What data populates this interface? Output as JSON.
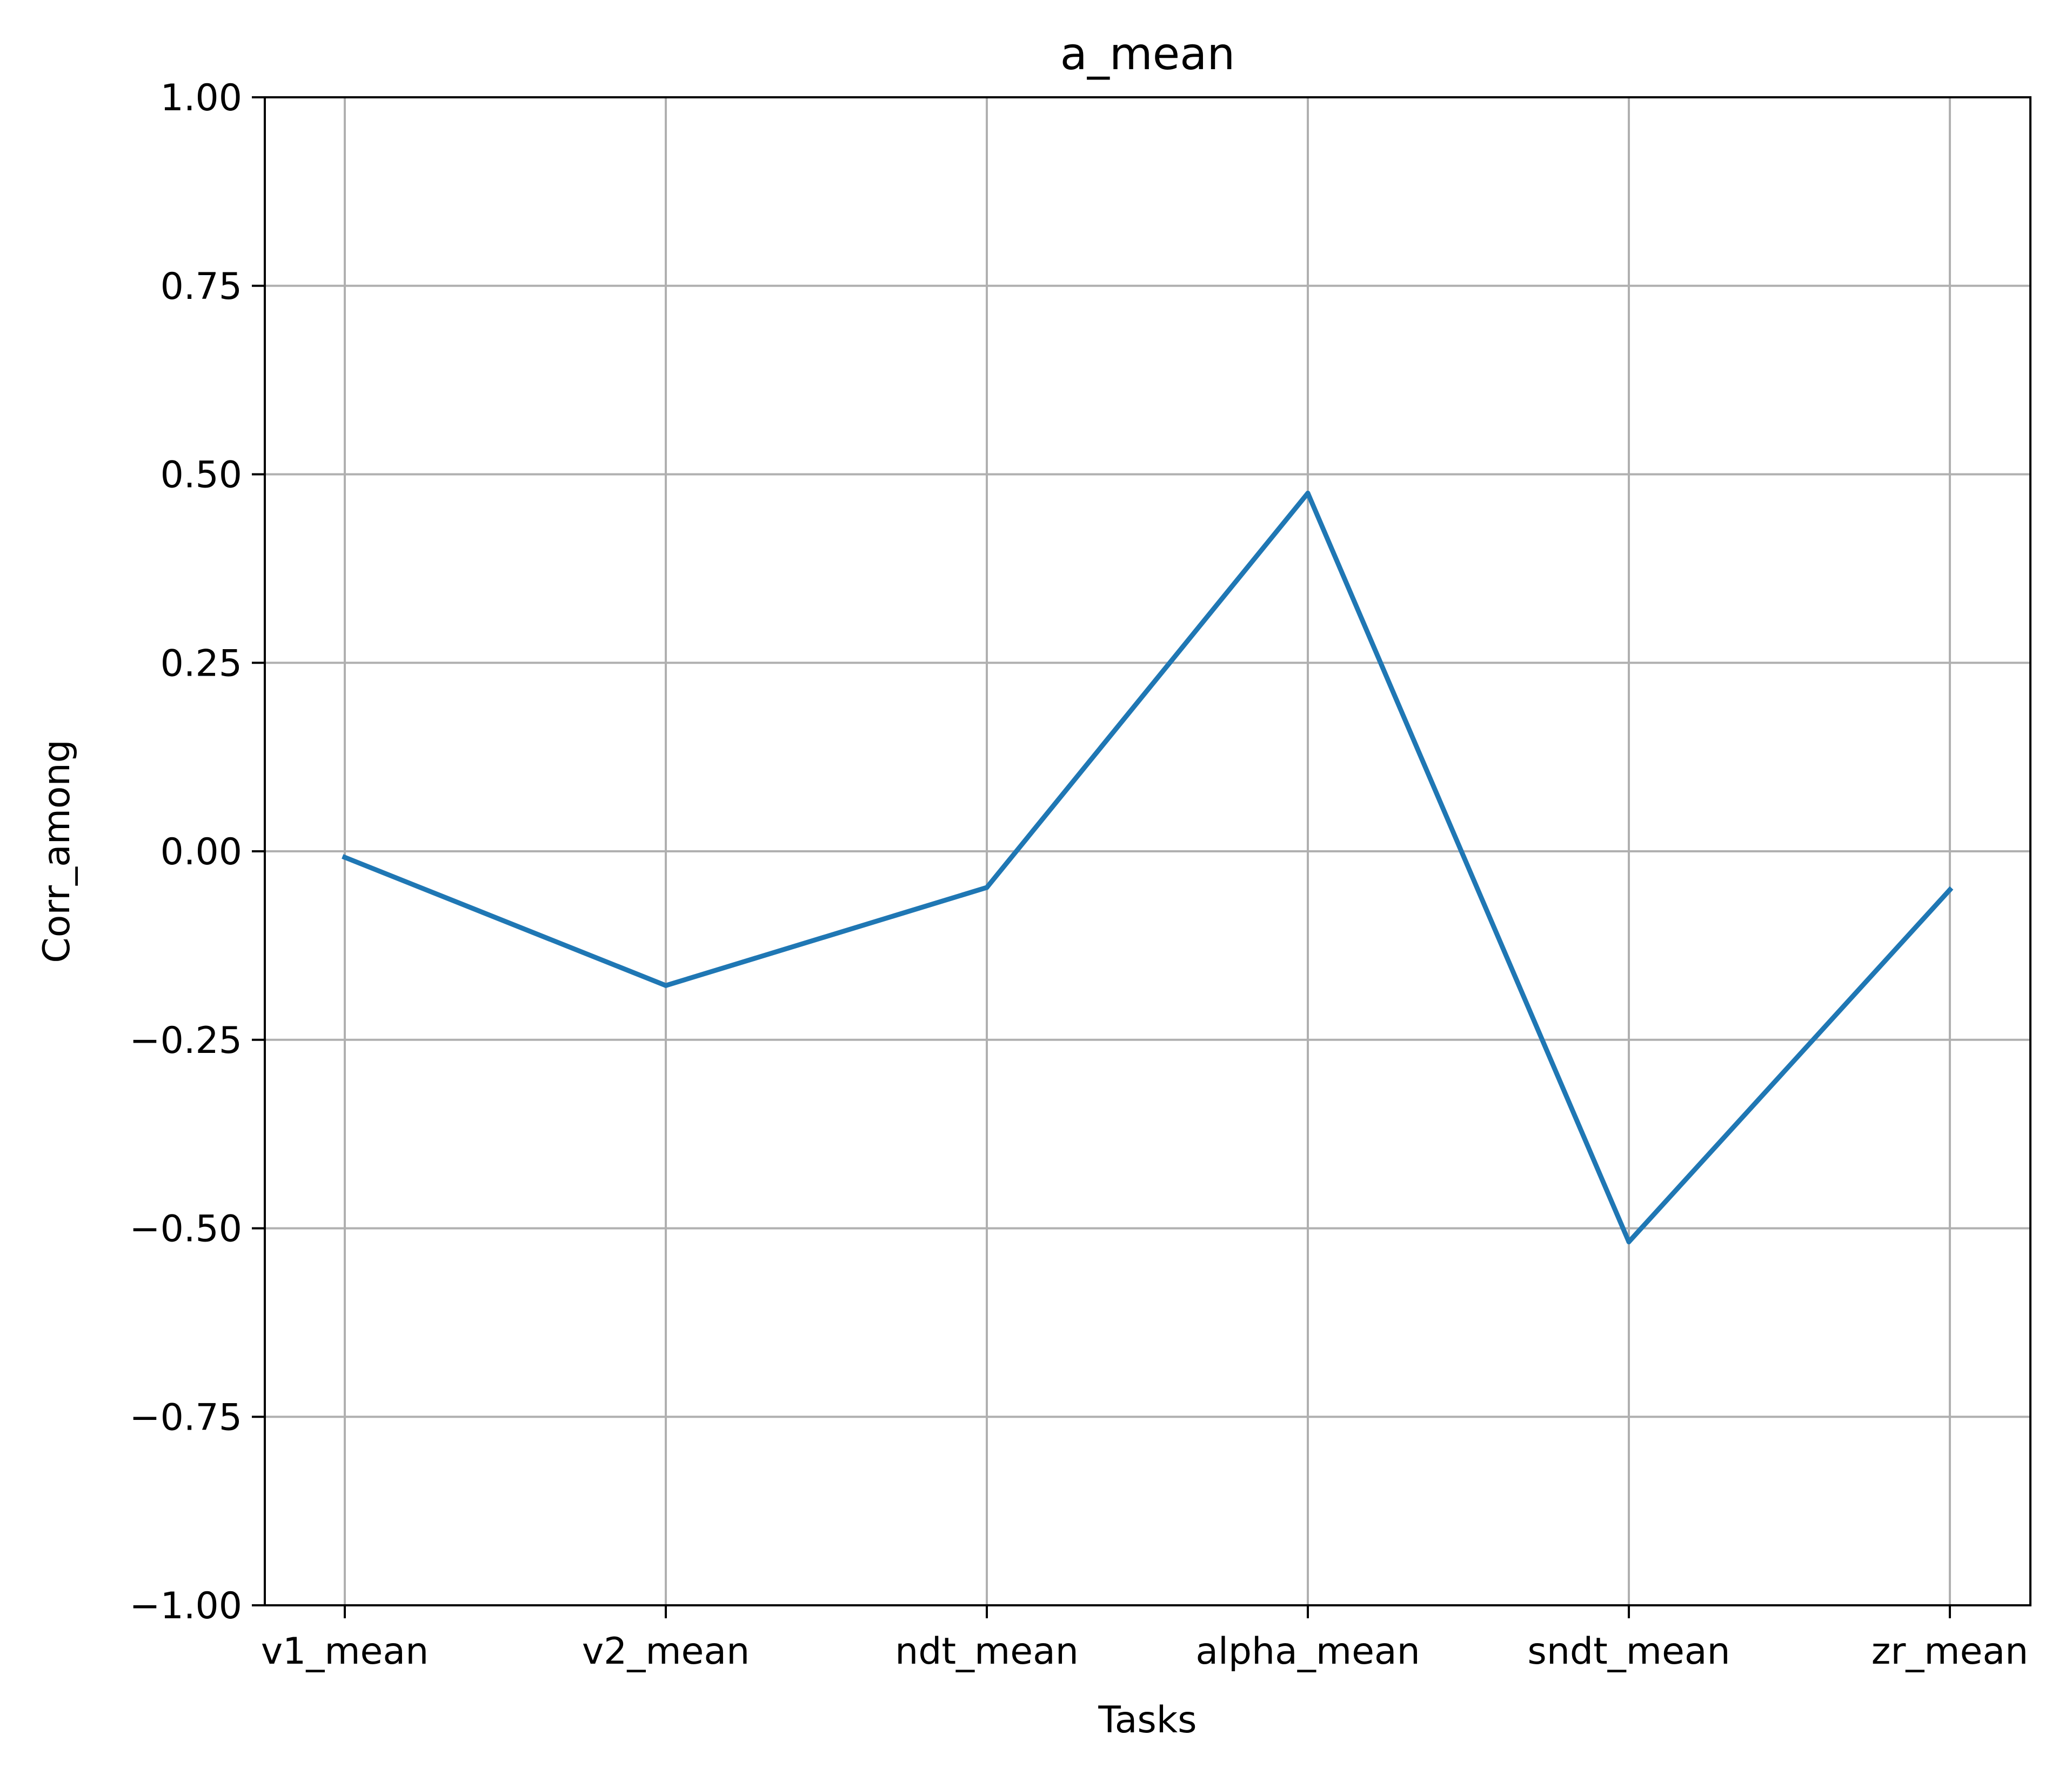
{
  "chart_data": {
    "type": "line",
    "title": "a_mean",
    "xlabel": "Tasks",
    "ylabel": "Corr_among",
    "categories": [
      "v1_mean",
      "v2_mean",
      "ndt_mean",
      "alpha_mean",
      "sndt_mean",
      "zr_mean"
    ],
    "series": [
      {
        "values": [
          -0.008,
          -0.178,
          -0.048,
          0.475,
          -0.518,
          -0.051
        ],
        "color": "#1f77b4"
      }
    ],
    "ylim": [
      -1.0,
      1.0
    ],
    "yticks": [
      1.0,
      0.75,
      0.5,
      0.25,
      0.0,
      -0.25,
      -0.5,
      -0.75,
      -1.0
    ],
    "ytick_labels": [
      "1.00",
      "0.75",
      "0.50",
      "0.25",
      "0.00",
      "−0.25",
      "−0.50",
      "−0.75",
      "−1.00"
    ],
    "grid": true,
    "legend": "none"
  }
}
